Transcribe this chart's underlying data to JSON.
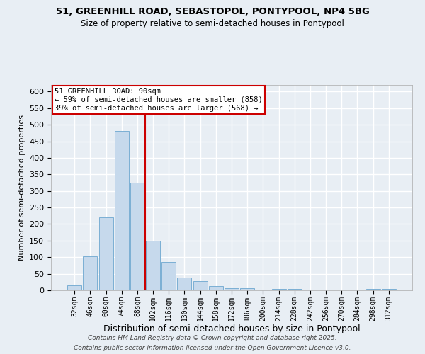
{
  "title1": "51, GREENHILL ROAD, SEBASTOPOL, PONTYPOOL, NP4 5BG",
  "title2": "Size of property relative to semi-detached houses in Pontypool",
  "xlabel": "Distribution of semi-detached houses by size in Pontypool",
  "ylabel": "Number of semi-detached properties",
  "categories": [
    "32sqm",
    "46sqm",
    "60sqm",
    "74sqm",
    "88sqm",
    "102sqm",
    "116sqm",
    "130sqm",
    "144sqm",
    "158sqm",
    "172sqm",
    "186sqm",
    "200sqm",
    "214sqm",
    "228sqm",
    "242sqm",
    "256sqm",
    "270sqm",
    "284sqm",
    "298sqm",
    "312sqm"
  ],
  "values": [
    15,
    103,
    220,
    480,
    325,
    150,
    85,
    38,
    27,
    12,
    7,
    6,
    2,
    5,
    5,
    3,
    2,
    0,
    0,
    4,
    4
  ],
  "bar_color": "#c6d9ec",
  "bar_edge_color": "#7bafd4",
  "vline_x": 4.5,
  "vline_color": "#cc0000",
  "annotation_title": "51 GREENHILL ROAD: 90sqm",
  "annotation_line1": "← 59% of semi-detached houses are smaller (858)",
  "annotation_line2": "39% of semi-detached houses are larger (568) →",
  "annotation_box_color": "#ffffff",
  "annotation_box_edge_color": "#cc0000",
  "ylim": [
    0,
    620
  ],
  "yticks": [
    0,
    50,
    100,
    150,
    200,
    250,
    300,
    350,
    400,
    450,
    500,
    550,
    600
  ],
  "footnote1": "Contains HM Land Registry data © Crown copyright and database right 2025.",
  "footnote2": "Contains public sector information licensed under the Open Government Licence v3.0.",
  "bg_color": "#e8eef4",
  "grid_color": "#ffffff"
}
